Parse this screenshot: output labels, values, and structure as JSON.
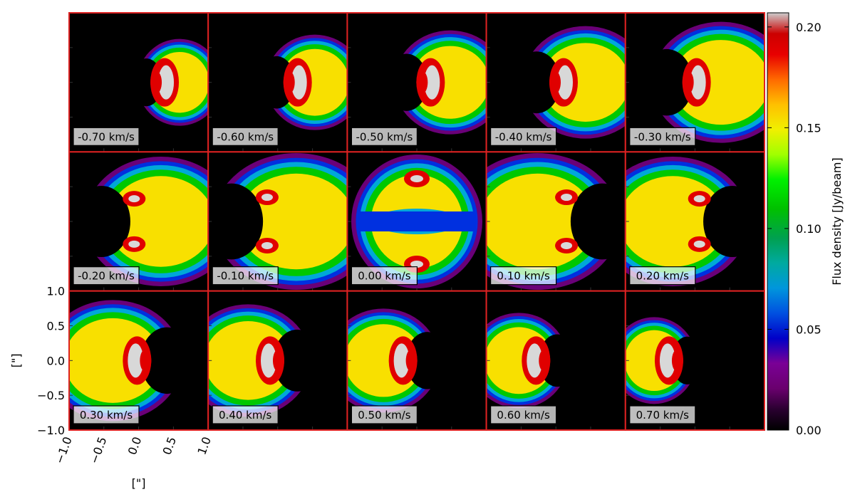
{
  "chart_data": {
    "type": "heatmap",
    "description_kind": "channel-map grid",
    "panels": [
      {
        "velocity": -0.7,
        "label": "-0.70 km/s"
      },
      {
        "velocity": -0.6,
        "label": "-0.60 km/s"
      },
      {
        "velocity": -0.5,
        "label": "-0.50 km/s"
      },
      {
        "velocity": -0.4,
        "label": "-0.40 km/s"
      },
      {
        "velocity": -0.3,
        "label": "-0.30 km/s"
      },
      {
        "velocity": -0.2,
        "label": "-0.20 km/s"
      },
      {
        "velocity": -0.1,
        "label": "-0.10 km/s"
      },
      {
        "velocity": 0.0,
        "label": "0.00 km/s"
      },
      {
        "velocity": 0.1,
        "label": "0.10 km/s"
      },
      {
        "velocity": 0.2,
        "label": "0.20 km/s"
      },
      {
        "velocity": 0.3,
        "label": "0.30 km/s"
      },
      {
        "velocity": 0.4,
        "label": "0.40 km/s"
      },
      {
        "velocity": 0.5,
        "label": "0.50 km/s"
      },
      {
        "velocity": 0.6,
        "label": "0.60 km/s"
      },
      {
        "velocity": 0.7,
        "label": "0.70 km/s"
      }
    ],
    "grid": {
      "rows": 3,
      "cols": 5
    },
    "xlabel": "[\"]",
    "ylabel": "[\"]",
    "xlim": [
      -1.0,
      1.0
    ],
    "ylim": [
      -1.0,
      1.0
    ],
    "xticks": [
      "−1.0",
      "−0.5",
      "0.0",
      "0.5",
      "1.0"
    ],
    "yticks": [
      "1.0",
      "0.5",
      "0.0",
      "−0.5",
      "−1.0"
    ],
    "colorbar": {
      "label": "Flux density [Jy/beam]",
      "range": [
        0.0,
        0.207
      ],
      "ticks": [
        "0.20",
        "0.15",
        "0.10",
        "0.05",
        "0.00"
      ],
      "tick_values": [
        0.2,
        0.15,
        0.1,
        0.05,
        0.0
      ],
      "colormap": "nipy_spectral"
    },
    "panel_border_color": "#dd2222"
  }
}
